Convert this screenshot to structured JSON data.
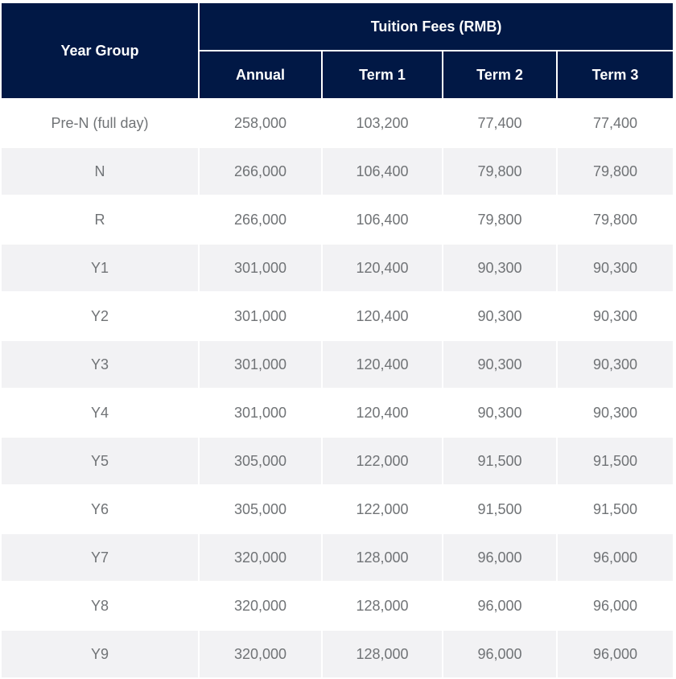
{
  "header": {
    "year_group": "Year Group",
    "fees_group": "Tuition Fees (RMB)",
    "columns": [
      "Annual",
      "Term 1",
      "Term 2",
      "Term 3"
    ]
  },
  "rows": [
    {
      "year": "Pre-N (full day)",
      "annual": "258,000",
      "term1": "103,200",
      "term2": "77,400",
      "term3": "77,400"
    },
    {
      "year": "N",
      "annual": "266,000",
      "term1": "106,400",
      "term2": "79,800",
      "term3": "79,800"
    },
    {
      "year": "R",
      "annual": "266,000",
      "term1": "106,400",
      "term2": "79,800",
      "term3": "79,800"
    },
    {
      "year": "Y1",
      "annual": "301,000",
      "term1": "120,400",
      "term2": "90,300",
      "term3": "90,300"
    },
    {
      "year": "Y2",
      "annual": "301,000",
      "term1": "120,400",
      "term2": "90,300",
      "term3": "90,300"
    },
    {
      "year": "Y3",
      "annual": "301,000",
      "term1": "120,400",
      "term2": "90,300",
      "term3": "90,300"
    },
    {
      "year": "Y4",
      "annual": "301,000",
      "term1": "120,400",
      "term2": "90,300",
      "term3": "90,300"
    },
    {
      "year": "Y5",
      "annual": "305,000",
      "term1": "122,000",
      "term2": "91,500",
      "term3": "91,500"
    },
    {
      "year": "Y6",
      "annual": "305,000",
      "term1": "122,000",
      "term2": "91,500",
      "term3": "91,500"
    },
    {
      "year": "Y7",
      "annual": "320,000",
      "term1": "128,000",
      "term2": "96,000",
      "term3": "96,000"
    },
    {
      "year": "Y8",
      "annual": "320,000",
      "term1": "128,000",
      "term2": "96,000",
      "term3": "96,000"
    },
    {
      "year": "Y9",
      "annual": "320,000",
      "term1": "128,000",
      "term2": "96,000",
      "term3": "96,000"
    }
  ],
  "colors": {
    "header_bg": "#011845",
    "header_text": "#ffffff",
    "stripe_bg": "#f2f2f4",
    "cell_text": "#707376"
  }
}
